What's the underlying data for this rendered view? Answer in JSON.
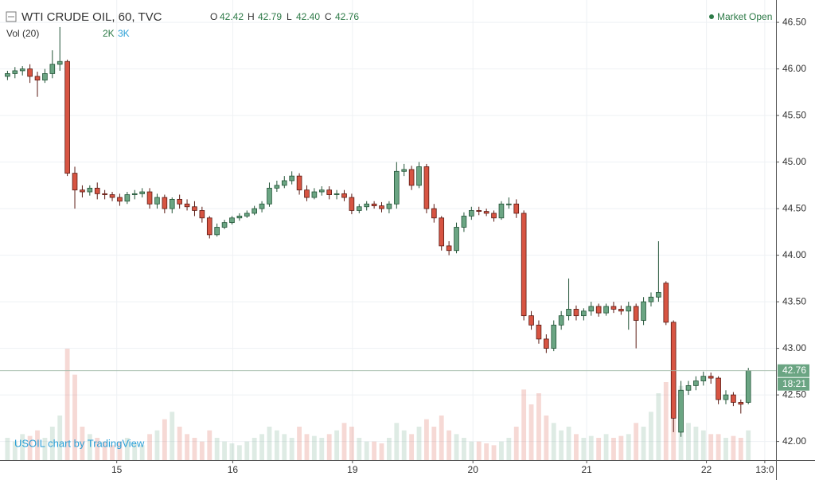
{
  "chart_data": {
    "type": "candlestick",
    "title": "WTI CRUDE OIL, 60, TVC",
    "ohlc_names": [
      "O",
      "H",
      "L",
      "C"
    ],
    "ohlc_labels": [
      "42.42",
      "42.79",
      "42.40",
      "42.76"
    ],
    "volume_title": "Vol (20)",
    "volume_labels": [
      "2K",
      "3K"
    ],
    "status": "Market Open",
    "watermark": "USOIL chart by TradingView",
    "countdown": "18:21",
    "up_color": "#6ba583",
    "down_color": "#d75442",
    "open": [
      45.92,
      45.95,
      45.98,
      46.0,
      45.92,
      45.88,
      45.95,
      46.05,
      46.08,
      44.88,
      44.7,
      44.68,
      44.72,
      44.66,
      44.65,
      44.62,
      44.58,
      44.65,
      44.66,
      44.68,
      44.55,
      44.62,
      44.5,
      44.6,
      44.55,
      44.52,
      44.48,
      44.4,
      44.22,
      44.3,
      44.35,
      44.4,
      44.42,
      44.45,
      44.5,
      44.55,
      44.72,
      44.75,
      44.8,
      44.85,
      44.7,
      44.62,
      44.68,
      44.7,
      44.65,
      44.66,
      44.62,
      44.48,
      44.52,
      44.55,
      44.53,
      44.5,
      44.55,
      44.9,
      44.92,
      44.75,
      44.95,
      44.5,
      44.4,
      44.1,
      44.05,
      44.3,
      44.42,
      44.48,
      44.47,
      44.45,
      44.4,
      44.55,
      44.55,
      44.45,
      43.35,
      43.25,
      43.1,
      43.0,
      43.25,
      43.35,
      43.42,
      43.35,
      43.4,
      43.45,
      43.38,
      43.45,
      43.42,
      43.4,
      43.45,
      43.3,
      43.5,
      43.55,
      43.7,
      43.28,
      42.1,
      42.55,
      42.6,
      42.65,
      42.7,
      42.68,
      42.45,
      42.5,
      42.42,
      42.42
    ],
    "high": [
      45.98,
      46.02,
      46.03,
      46.05,
      45.97,
      46.0,
      46.2,
      46.45,
      46.1,
      44.95,
      44.75,
      44.75,
      44.78,
      44.7,
      44.68,
      44.66,
      44.68,
      44.7,
      44.72,
      44.72,
      44.66,
      44.65,
      44.62,
      44.65,
      44.6,
      44.58,
      44.52,
      44.42,
      44.34,
      44.38,
      44.42,
      44.45,
      44.48,
      44.53,
      44.58,
      44.78,
      44.8,
      44.85,
      44.9,
      44.88,
      44.75,
      44.72,
      44.74,
      44.74,
      44.7,
      44.7,
      44.66,
      44.55,
      44.58,
      44.58,
      44.57,
      44.58,
      45.0,
      44.98,
      44.96,
      45.0,
      44.98,
      44.55,
      44.42,
      44.15,
      44.35,
      44.46,
      44.52,
      44.52,
      44.5,
      44.48,
      44.58,
      44.62,
      44.6,
      44.48,
      43.4,
      43.3,
      43.15,
      43.3,
      43.4,
      43.75,
      43.46,
      43.43,
      43.5,
      43.48,
      43.48,
      43.5,
      43.46,
      43.5,
      43.48,
      43.55,
      43.6,
      44.15,
      43.72,
      43.3,
      42.65,
      42.65,
      42.7,
      42.75,
      42.74,
      42.7,
      42.55,
      42.53,
      42.45,
      42.79
    ],
    "low": [
      45.88,
      45.9,
      45.93,
      45.85,
      45.7,
      45.85,
      45.9,
      45.98,
      44.85,
      44.5,
      44.62,
      44.64,
      44.6,
      44.6,
      44.58,
      44.53,
      44.55,
      44.6,
      44.62,
      44.5,
      44.5,
      44.45,
      44.45,
      44.5,
      44.48,
      44.42,
      44.35,
      44.18,
      44.2,
      44.28,
      44.33,
      44.37,
      44.4,
      44.43,
      44.46,
      44.52,
      44.68,
      44.72,
      44.76,
      44.65,
      44.58,
      44.6,
      44.64,
      44.6,
      44.6,
      44.58,
      44.44,
      44.45,
      44.48,
      44.5,
      44.46,
      44.45,
      44.5,
      44.85,
      44.7,
      44.72,
      44.45,
      44.35,
      44.05,
      44.0,
      44.02,
      44.25,
      44.38,
      44.43,
      44.42,
      44.36,
      44.38,
      44.5,
      44.4,
      43.3,
      43.2,
      43.05,
      42.95,
      42.97,
      43.2,
      43.3,
      43.3,
      43.3,
      43.35,
      43.34,
      43.35,
      43.38,
      43.36,
      43.2,
      43.0,
      43.25,
      43.45,
      43.5,
      43.25,
      42.1,
      42.05,
      42.5,
      42.55,
      42.6,
      42.62,
      42.4,
      42.4,
      42.38,
      42.3,
      42.4
    ],
    "close": [
      45.95,
      45.98,
      46.0,
      45.92,
      45.88,
      45.95,
      46.05,
      46.08,
      44.88,
      44.7,
      44.68,
      44.72,
      44.66,
      44.65,
      44.62,
      44.58,
      44.65,
      44.66,
      44.68,
      44.55,
      44.62,
      44.5,
      44.6,
      44.55,
      44.52,
      44.48,
      44.4,
      44.22,
      44.3,
      44.35,
      44.4,
      44.42,
      44.45,
      44.5,
      44.55,
      44.72,
      44.75,
      44.8,
      44.85,
      44.7,
      44.62,
      44.68,
      44.7,
      44.65,
      44.66,
      44.62,
      44.48,
      44.52,
      44.55,
      44.53,
      44.5,
      44.55,
      44.9,
      44.92,
      44.75,
      44.95,
      44.5,
      44.4,
      44.1,
      44.05,
      44.3,
      44.42,
      44.48,
      44.47,
      44.45,
      44.4,
      44.55,
      44.55,
      44.45,
      43.35,
      43.25,
      43.1,
      43.0,
      43.25,
      43.35,
      43.42,
      43.35,
      43.4,
      43.45,
      43.38,
      43.45,
      43.42,
      43.4,
      43.45,
      43.3,
      43.5,
      43.55,
      43.6,
      43.28,
      42.25,
      42.55,
      42.6,
      42.65,
      42.7,
      42.68,
      42.45,
      42.5,
      42.42,
      42.4,
      42.76
    ],
    "volume": [
      600,
      500,
      700,
      650,
      800,
      600,
      900,
      1200,
      3000,
      2300,
      900,
      700,
      600,
      500,
      400,
      500,
      600,
      450,
      400,
      700,
      800,
      1100,
      1300,
      900,
      700,
      600,
      500,
      800,
      600,
      500,
      450,
      400,
      500,
      600,
      700,
      900,
      800,
      700,
      600,
      900,
      700,
      650,
      600,
      700,
      800,
      1000,
      900,
      600,
      500,
      500,
      450,
      600,
      1000,
      800,
      700,
      900,
      1100,
      900,
      1200,
      800,
      700,
      600,
      500,
      500,
      450,
      400,
      500,
      600,
      900,
      1900,
      1500,
      1800,
      1200,
      1000,
      800,
      900,
      700,
      600,
      650,
      600,
      700,
      600,
      650,
      700,
      1000,
      900,
      1300,
      1800,
      2100,
      2500,
      2000,
      1000,
      900,
      800,
      700,
      700,
      600,
      650,
      600,
      800
    ],
    "vlim": [
      0,
      3000
    ],
    "xlim": [
      -1,
      102.7
    ],
    "xticks": [
      {
        "value": 14.6,
        "label": "15"
      },
      {
        "value": 30.1,
        "label": "16"
      },
      {
        "value": 46.1,
        "label": "19"
      },
      {
        "value": 62.2,
        "label": "20"
      },
      {
        "value": 77.4,
        "label": "21"
      },
      {
        "value": 93.4,
        "label": "22"
      },
      {
        "value": 101.2,
        "label": "13:0"
      }
    ],
    "ylim": [
      41.8,
      46.74
    ],
    "yticks": [
      {
        "value": 42,
        "label": "42.00"
      },
      {
        "value": 42.5,
        "label": "42.50"
      },
      {
        "value": 43,
        "label": "43.00"
      },
      {
        "value": 43.5,
        "label": "43.50"
      },
      {
        "value": 44,
        "label": "44.00"
      },
      {
        "value": 44.5,
        "label": "44.50"
      },
      {
        "value": 45,
        "label": "45.00"
      },
      {
        "value": 45.5,
        "label": "45.50"
      },
      {
        "value": 46,
        "label": "46.00"
      },
      {
        "value": 46.5,
        "label": "46.50"
      }
    ],
    "grid": true
  }
}
